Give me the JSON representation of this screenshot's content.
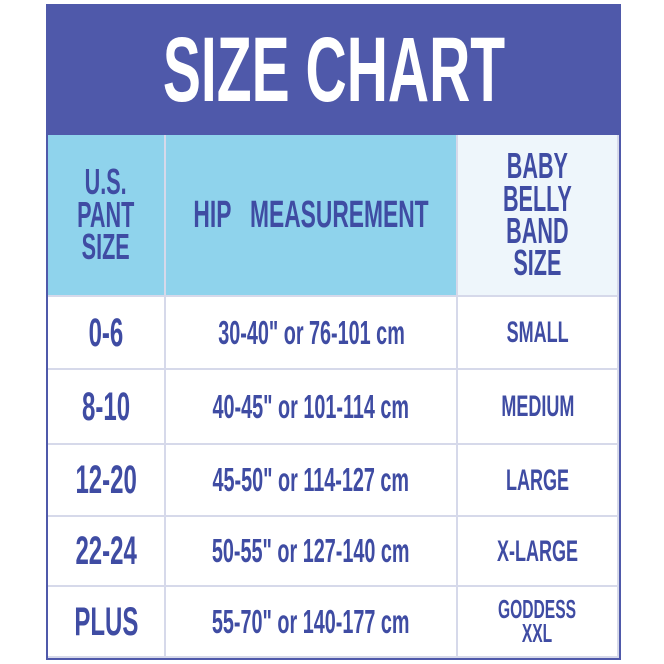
{
  "header": {
    "title": "SIZE CHART"
  },
  "table": {
    "columns": [
      "U.S.\nPANT\nSIZE",
      "HIP   MEASUREMENT",
      "BABY\nBELLY\nBAND\nSIZE"
    ],
    "rows": [
      [
        "0-6",
        "30-40\" or 76-101 cm",
        "SMALL"
      ],
      [
        "8-10",
        "40-45\" or 101-114 cm",
        "MEDIUM"
      ],
      [
        "12-20",
        "45-50\" or 114-127 cm",
        "LARGE"
      ],
      [
        "22-24",
        "50-55\" or 127-140 cm",
        "X-LARGE"
      ],
      [
        "PLUS",
        "55-70\" or 140-177 cm",
        "GODDESS\nXXL"
      ]
    ]
  }
}
